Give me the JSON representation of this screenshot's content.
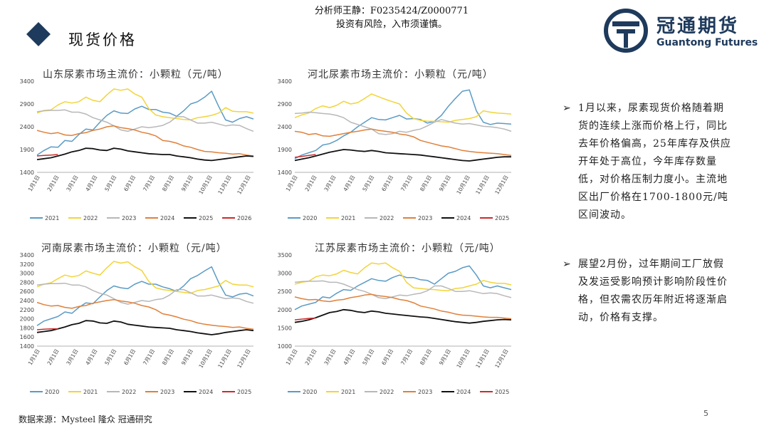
{
  "header": {
    "analyst_line1": "分析师王静：F0235424/Z0000771",
    "analyst_line2": "投资有风险，入市须谨慎。",
    "page_title": "现货价格",
    "logo_cn": "冠通期货",
    "logo_en": "Guantong Futures"
  },
  "colors": {
    "brand": "#1e3a5c",
    "series_palette": [
      "#5b9bc5",
      "#f2d43a",
      "#b8b8b8",
      "#e0803a",
      "#111111",
      "#cc2a2a"
    ]
  },
  "chart_data": [
    {
      "type": "line",
      "title": "山东尿素市场主流价：小颗粒（元/吨）",
      "ylim": [
        1400,
        3400
      ],
      "yticks": [
        1400,
        1900,
        2400,
        2900,
        3400
      ],
      "xticks": [
        "1月1日",
        "2月1日",
        "3月1日",
        "4月1日",
        "5月1日",
        "6月1日",
        "7月1日",
        "8月1日",
        "9月1日",
        "10月1日",
        "11月1日",
        "12月1日"
      ],
      "series": [
        {
          "name": "2021",
          "color": "#5b9bc5",
          "values": [
            1780,
            1880,
            1960,
            1950,
            2100,
            2080,
            2230,
            2350,
            2330,
            2500,
            2650,
            2750,
            2700,
            2690,
            2790,
            2850,
            2780,
            2780,
            2720,
            2700,
            2630,
            2750,
            2900,
            2950,
            3050,
            3180,
            2850,
            2550,
            2500,
            2580,
            2620,
            2570
          ]
        },
        {
          "name": "2022",
          "color": "#f2d43a",
          "values": [
            2700,
            2760,
            2770,
            2880,
            2950,
            2920,
            2950,
            3050,
            2980,
            2950,
            3100,
            3230,
            3200,
            3230,
            3120,
            3050,
            2800,
            2660,
            2620,
            2600,
            2580,
            2560,
            2550,
            2600,
            2620,
            2650,
            2700,
            2820,
            2740,
            2730,
            2730,
            2700
          ]
        },
        {
          "name": "2023",
          "color": "#b8b8b8",
          "values": [
            2730,
            2750,
            2760,
            2760,
            2770,
            2720,
            2720,
            2680,
            2600,
            2550,
            2500,
            2420,
            2330,
            2300,
            2350,
            2400,
            2380,
            2400,
            2430,
            2500,
            2620,
            2620,
            2550,
            2480,
            2480,
            2500,
            2460,
            2420,
            2440,
            2430,
            2360,
            2300
          ]
        },
        {
          "name": "2024",
          "color": "#e0803a",
          "values": [
            2320,
            2280,
            2250,
            2270,
            2220,
            2210,
            2250,
            2270,
            2320,
            2350,
            2400,
            2420,
            2380,
            2360,
            2330,
            2280,
            2250,
            2200,
            2100,
            2080,
            2040,
            1980,
            1950,
            1900,
            1860,
            1850,
            1830,
            1820,
            1800,
            1810,
            1780,
            1760
          ]
        },
        {
          "name": "2025",
          "color": "#111111",
          "values": [
            1680,
            1700,
            1720,
            1760,
            1800,
            1850,
            1880,
            1930,
            1920,
            1890,
            1880,
            1930,
            1910,
            1870,
            1850,
            1830,
            1810,
            1800,
            1790,
            1790,
            1760,
            1740,
            1720,
            1690,
            1670,
            1660,
            1680,
            1700,
            1720,
            1740,
            1760,
            1750
          ]
        },
        {
          "name": "2026",
          "color": "#cc2a2a",
          "values": [
            1760,
            1770,
            1780,
            1790
          ]
        }
      ]
    },
    {
      "type": "line",
      "title": "河北尿素市场主流价：小颗粒（元/吨）",
      "ylim": [
        1400,
        3400
      ],
      "yticks": [
        1400,
        1900,
        2400,
        2900,
        3400
      ],
      "xticks": [
        "1月1日",
        "2月1日",
        "3月1日",
        "4月1日",
        "5月1日",
        "6月1日",
        "7月1日",
        "8月1日",
        "9月1日",
        "10月1日",
        "11月1日",
        "12月1日"
      ],
      "series": [
        {
          "name": "2020",
          "color": "#5b9bc5",
          "values": [
            1700,
            1780,
            1830,
            1880,
            2000,
            2030,
            2100,
            2200,
            2280,
            2400,
            2500,
            2600,
            2560,
            2550,
            2600,
            2650,
            2570,
            2580,
            2560,
            2480,
            2520,
            2650,
            2850,
            3020,
            3180,
            3210,
            2750,
            2500,
            2450,
            2480,
            2470,
            2460
          ]
        },
        {
          "name": "2021",
          "color": "#f2d43a",
          "values": [
            2600,
            2660,
            2700,
            2800,
            2860,
            2820,
            2870,
            2960,
            2900,
            2930,
            3020,
            3120,
            3060,
            3000,
            2950,
            2900,
            2700,
            2580,
            2540,
            2520,
            2520,
            2510,
            2500,
            2540,
            2560,
            2580,
            2620,
            2750,
            2720,
            2700,
            2690,
            2680
          ]
        },
        {
          "name": "2022",
          "color": "#b8b8b8",
          "values": [
            2690,
            2700,
            2720,
            2710,
            2690,
            2680,
            2650,
            2600,
            2500,
            2450,
            2400,
            2350,
            2250,
            2230,
            2250,
            2300,
            2280,
            2320,
            2350,
            2420,
            2500,
            2560,
            2520,
            2480,
            2460,
            2470,
            2440,
            2410,
            2400,
            2380,
            2350,
            2300
          ]
        },
        {
          "name": "2023",
          "color": "#e0803a",
          "values": [
            2300,
            2280,
            2230,
            2250,
            2200,
            2190,
            2220,
            2250,
            2280,
            2300,
            2330,
            2350,
            2320,
            2300,
            2280,
            2240,
            2220,
            2180,
            2100,
            2060,
            2020,
            1980,
            1960,
            1920,
            1880,
            1860,
            1840,
            1830,
            1820,
            1810,
            1790,
            1770
          ]
        },
        {
          "name": "2024",
          "color": "#111111",
          "values": [
            1660,
            1690,
            1720,
            1760,
            1800,
            1840,
            1870,
            1900,
            1890,
            1870,
            1860,
            1880,
            1860,
            1830,
            1820,
            1810,
            1800,
            1790,
            1780,
            1760,
            1740,
            1720,
            1700,
            1680,
            1660,
            1650,
            1670,
            1690,
            1710,
            1730,
            1740,
            1740
          ]
        },
        {
          "name": "2025",
          "color": "#cc2a2a",
          "values": [
            1730,
            1750,
            1770,
            1790
          ]
        }
      ]
    },
    {
      "type": "line",
      "title": "河南尿素市场主流价：小颗粒（元/吨）",
      "ylim": [
        1400,
        3400
      ],
      "yticks": [
        1400,
        1600,
        1800,
        2000,
        2200,
        2400,
        2600,
        2800,
        3000,
        3200,
        3400
      ],
      "xticks": [
        "1月1日",
        "2月1日",
        "3月1日",
        "4月1日",
        "5月1日",
        "6月1日",
        "7月1日",
        "8月1日",
        "9月1日",
        "10月1日",
        "11月1日",
        "12月1日"
      ],
      "series": [
        {
          "name": "2020",
          "color": "#5b9bc5",
          "values": [
            1850,
            1950,
            2000,
            2050,
            2150,
            2120,
            2250,
            2350,
            2330,
            2480,
            2620,
            2720,
            2680,
            2660,
            2760,
            2820,
            2760,
            2760,
            2700,
            2660,
            2600,
            2720,
            2880,
            2950,
            3050,
            3140,
            2800,
            2520,
            2480,
            2540,
            2560,
            2500
          ]
        },
        {
          "name": "2021",
          "color": "#f2d43a",
          "values": [
            2700,
            2760,
            2790,
            2880,
            2960,
            2920,
            2950,
            3050,
            3000,
            2960,
            3120,
            3260,
            3220,
            3250,
            3140,
            3060,
            2820,
            2680,
            2640,
            2620,
            2600,
            2580,
            2560,
            2620,
            2640,
            2680,
            2720,
            2840,
            2760,
            2740,
            2740,
            2700
          ]
        },
        {
          "name": "2022",
          "color": "#b8b8b8",
          "values": [
            2740,
            2760,
            2770,
            2770,
            2780,
            2740,
            2740,
            2700,
            2620,
            2560,
            2520,
            2440,
            2360,
            2320,
            2360,
            2400,
            2380,
            2420,
            2440,
            2520,
            2640,
            2640,
            2570,
            2500,
            2500,
            2520,
            2480,
            2440,
            2460,
            2440,
            2380,
            2340
          ]
        },
        {
          "name": "2023",
          "color": "#e0803a",
          "values": [
            2360,
            2310,
            2280,
            2290,
            2250,
            2230,
            2270,
            2290,
            2340,
            2370,
            2400,
            2420,
            2390,
            2370,
            2340,
            2290,
            2260,
            2200,
            2110,
            2080,
            2040,
            1990,
            1960,
            1910,
            1880,
            1860,
            1840,
            1830,
            1810,
            1820,
            1790,
            1770
          ]
        },
        {
          "name": "2024",
          "color": "#111111",
          "values": [
            1700,
            1720,
            1740,
            1780,
            1820,
            1870,
            1900,
            1960,
            1950,
            1910,
            1900,
            1950,
            1930,
            1880,
            1860,
            1840,
            1820,
            1810,
            1800,
            1790,
            1760,
            1740,
            1720,
            1690,
            1670,
            1650,
            1670,
            1700,
            1720,
            1740,
            1760,
            1740
          ]
        },
        {
          "name": "2025",
          "color": "#cc2a2a",
          "values": [
            1760,
            1770,
            1780,
            1780
          ]
        }
      ]
    },
    {
      "type": "line",
      "title": "江苏尿素市场主流价：小颗粒（元/吨）",
      "ylim": [
        1000,
        3500
      ],
      "yticks": [
        1000,
        1500,
        2000,
        2500,
        3000,
        3500
      ],
      "xticks": [
        "1月1日",
        "2月1日",
        "3月1日",
        "4月1日",
        "5月1日",
        "6月1日",
        "7月1日",
        "8月1日",
        "9月1日",
        "10月1日",
        "11月1日",
        "12月1日"
      ],
      "series": [
        {
          "name": "2020",
          "color": "#5b9bc5",
          "values": [
            2000,
            2100,
            2150,
            2200,
            2350,
            2320,
            2450,
            2550,
            2530,
            2650,
            2750,
            2850,
            2800,
            2780,
            2880,
            2950,
            2880,
            2880,
            2820,
            2800,
            2700,
            2850,
            3000,
            3050,
            3150,
            3200,
            2950,
            2650,
            2600,
            2650,
            2600,
            2550
          ]
        },
        {
          "name": "2021",
          "color": "#f2d43a",
          "values": [
            2700,
            2750,
            2780,
            2900,
            2950,
            2930,
            2980,
            3080,
            3020,
            2980,
            3150,
            3280,
            3250,
            3280,
            3150,
            3050,
            2750,
            2600,
            2580,
            2560,
            2550,
            2530,
            2520,
            2580,
            2600,
            2650,
            2700,
            2800,
            2750,
            2720,
            2720,
            2680
          ]
        },
        {
          "name": "2022",
          "color": "#b8b8b8",
          "values": [
            2750,
            2770,
            2780,
            2780,
            2790,
            2750,
            2750,
            2700,
            2620,
            2550,
            2500,
            2420,
            2330,
            2300,
            2350,
            2400,
            2380,
            2420,
            2450,
            2520,
            2650,
            2650,
            2580,
            2500,
            2500,
            2520,
            2480,
            2440,
            2460,
            2440,
            2380,
            2330
          ]
        },
        {
          "name": "2023",
          "color": "#e0803a",
          "values": [
            2350,
            2300,
            2270,
            2280,
            2240,
            2220,
            2260,
            2280,
            2330,
            2360,
            2400,
            2420,
            2380,
            2360,
            2330,
            2280,
            2250,
            2190,
            2100,
            2060,
            2020,
            1960,
            1930,
            1880,
            1850,
            1840,
            1820,
            1800,
            1790,
            1790,
            1770,
            1750
          ]
        },
        {
          "name": "2024",
          "color": "#111111",
          "values": [
            1650,
            1680,
            1720,
            1780,
            1850,
            1920,
            1950,
            2000,
            1980,
            1940,
            1920,
            1960,
            1940,
            1900,
            1880,
            1860,
            1840,
            1820,
            1800,
            1790,
            1760,
            1730,
            1700,
            1670,
            1650,
            1630,
            1650,
            1680,
            1700,
            1720,
            1730,
            1720
          ]
        },
        {
          "name": "2025",
          "color": "#cc2a2a",
          "values": [
            1720,
            1740,
            1760,
            1770
          ]
        }
      ]
    }
  ],
  "bullets": [
    "1月以来，尿素现货价格随着期货的连续上涨而价格上行，同比去年价格偏高，25年库存及供应开年处于高位，今年库存数量低，对价格压制力度小。主流地区出厂价格在1700-1800元/吨区间波动。",
    "展望2月份，过年期间工厂放假及发运受影响预计影响阶段性价格，但农需农历年附近将逐渐启动，价格有支撑。"
  ],
  "bullet_marker": "➢",
  "footer": {
    "source": "数据来源：Mysteel  隆众  冠通研究",
    "page": "5"
  }
}
